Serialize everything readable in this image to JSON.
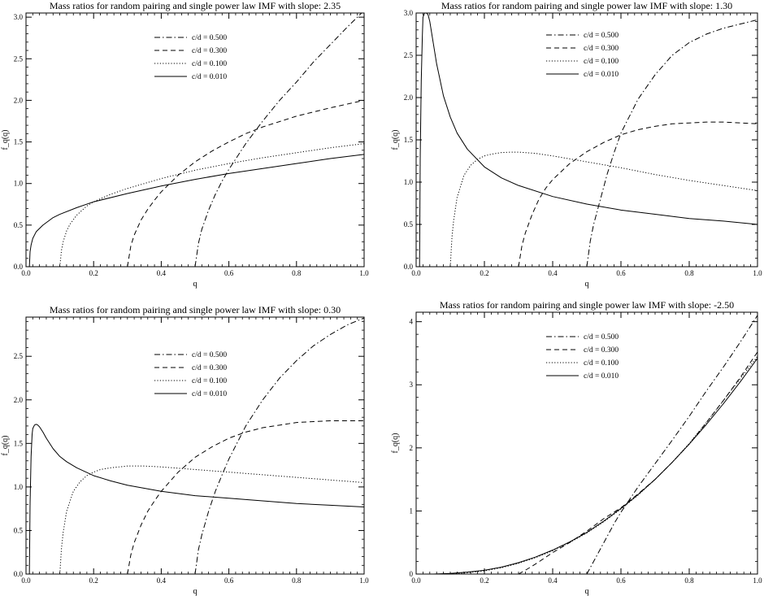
{
  "chart_data": [
    {
      "type": "line",
      "title": "Mass ratios for random pairing and single power law IMF with slope:  2.35",
      "xlabel": "q",
      "ylabel": "f_q(q)",
      "xlim": [
        0,
        1
      ],
      "ylim": [
        0,
        3.05
      ],
      "xticks": [
        "0.0",
        "0.2",
        "0.4",
        "0.6",
        "0.8",
        "1.0"
      ],
      "yticks": [
        "0.0",
        "0.5",
        "1.0",
        "1.5",
        "2.0",
        "2.5",
        "3.0"
      ],
      "legend_position": "top-center",
      "series": [
        {
          "name": "c/d = 0.500",
          "dash": "dashdot",
          "x": [
            0.5,
            0.51,
            0.52,
            0.54,
            0.56,
            0.58,
            0.6,
            0.65,
            0.7,
            0.75,
            0.8,
            0.85,
            0.9,
            0.95,
            1.0
          ],
          "y": [
            0.0,
            0.28,
            0.45,
            0.68,
            0.87,
            1.03,
            1.17,
            1.48,
            1.75,
            2.0,
            2.22,
            2.46,
            2.67,
            2.88,
            3.08
          ]
        },
        {
          "name": "c/d = 0.300",
          "dash": "dashed",
          "x": [
            0.3,
            0.31,
            0.32,
            0.34,
            0.36,
            0.38,
            0.4,
            0.45,
            0.5,
            0.55,
            0.6,
            0.65,
            0.7,
            0.8,
            0.9,
            1.0
          ],
          "y": [
            0.0,
            0.25,
            0.38,
            0.56,
            0.69,
            0.8,
            0.9,
            1.1,
            1.26,
            1.39,
            1.5,
            1.6,
            1.68,
            1.81,
            1.91,
            2.0
          ]
        },
        {
          "name": "c/d = 0.100",
          "dash": "dotted",
          "x": [
            0.1,
            0.105,
            0.11,
            0.12,
            0.13,
            0.15,
            0.18,
            0.2,
            0.25,
            0.3,
            0.4,
            0.5,
            0.6,
            0.7,
            0.8,
            0.9,
            1.0
          ],
          "y": [
            0.0,
            0.2,
            0.3,
            0.43,
            0.51,
            0.62,
            0.73,
            0.78,
            0.87,
            0.94,
            1.06,
            1.16,
            1.24,
            1.31,
            1.37,
            1.43,
            1.48
          ]
        },
        {
          "name": "c/d = 0.010",
          "dash": "solid",
          "x": [
            0.01,
            0.012,
            0.015,
            0.02,
            0.03,
            0.05,
            0.08,
            0.1,
            0.15,
            0.2,
            0.3,
            0.4,
            0.5,
            0.6,
            0.7,
            0.8,
            0.9,
            1.0
          ],
          "y": [
            0.0,
            0.18,
            0.26,
            0.34,
            0.42,
            0.5,
            0.59,
            0.63,
            0.71,
            0.78,
            0.88,
            0.97,
            1.05,
            1.12,
            1.18,
            1.24,
            1.3,
            1.35
          ]
        }
      ]
    },
    {
      "type": "line",
      "title": "Mass ratios for random pairing and single power law IMF with slope:  1.30",
      "xlabel": "q",
      "ylabel": "f_q(q)",
      "xlim": [
        0,
        1
      ],
      "ylim": [
        0,
        3.0
      ],
      "xticks": [
        "0.0",
        "0.2",
        "0.4",
        "0.6",
        "0.8",
        "1.0"
      ],
      "yticks": [
        "0.0",
        "0.5",
        "1.0",
        "1.5",
        "2.0",
        "2.5",
        "3.0"
      ],
      "legend_position": "top-right",
      "series": [
        {
          "name": "c/d = 0.500",
          "dash": "dashdot",
          "x": [
            0.5,
            0.51,
            0.52,
            0.54,
            0.56,
            0.58,
            0.6,
            0.65,
            0.7,
            0.75,
            0.8,
            0.85,
            0.9,
            0.95,
            1.0
          ],
          "y": [
            0.0,
            0.3,
            0.5,
            0.8,
            1.1,
            1.35,
            1.58,
            1.98,
            2.27,
            2.5,
            2.65,
            2.75,
            2.82,
            2.87,
            2.92
          ]
        },
        {
          "name": "c/d = 0.300",
          "dash": "dashed",
          "x": [
            0.3,
            0.31,
            0.32,
            0.34,
            0.36,
            0.38,
            0.4,
            0.45,
            0.5,
            0.55,
            0.6,
            0.65,
            0.7,
            0.75,
            0.8,
            0.85,
            0.9,
            0.95,
            1.0
          ],
          "y": [
            0.0,
            0.25,
            0.4,
            0.62,
            0.8,
            0.93,
            1.03,
            1.22,
            1.36,
            1.47,
            1.56,
            1.62,
            1.66,
            1.69,
            1.7,
            1.71,
            1.71,
            1.7,
            1.69
          ]
        },
        {
          "name": "c/d = 0.100",
          "dash": "dotted",
          "x": [
            0.1,
            0.105,
            0.11,
            0.12,
            0.14,
            0.16,
            0.18,
            0.2,
            0.22,
            0.25,
            0.28,
            0.3,
            0.35,
            0.4,
            0.5,
            0.6,
            0.7,
            0.8,
            0.9,
            1.0
          ],
          "y": [
            0.0,
            0.35,
            0.55,
            0.82,
            1.08,
            1.2,
            1.27,
            1.31,
            1.33,
            1.35,
            1.355,
            1.355,
            1.34,
            1.31,
            1.24,
            1.17,
            1.09,
            1.02,
            0.96,
            0.9
          ]
        },
        {
          "name": "c/d = 0.010",
          "dash": "solid",
          "x": [
            0.01,
            0.012,
            0.015,
            0.018,
            0.02,
            0.025,
            0.03,
            0.035,
            0.04,
            0.05,
            0.06,
            0.08,
            0.1,
            0.12,
            0.15,
            0.2,
            0.25,
            0.3,
            0.4,
            0.5,
            0.6,
            0.7,
            0.8,
            0.9,
            1.0
          ],
          "y": [
            0.0,
            1.3,
            2.2,
            2.7,
            2.95,
            3.0,
            3.0,
            2.98,
            2.9,
            2.65,
            2.4,
            2.02,
            1.77,
            1.58,
            1.39,
            1.18,
            1.05,
            0.96,
            0.83,
            0.74,
            0.67,
            0.62,
            0.57,
            0.54,
            0.5
          ]
        }
      ]
    },
    {
      "type": "line",
      "title": "Mass ratios for random pairing and single power law IMF with slope:  0.30",
      "xlabel": "q",
      "ylabel": "f_q(q)",
      "xlim": [
        0,
        1
      ],
      "ylim": [
        0,
        2.95
      ],
      "xticks": [
        "0.0",
        "0.2",
        "0.4",
        "0.6",
        "0.8",
        "1.0"
      ],
      "yticks": [
        "0.0",
        "0.5",
        "1.0",
        "1.5",
        "2.0",
        "2.5"
      ],
      "legend_position": "top-center",
      "series": [
        {
          "name": "c/d = 0.500",
          "dash": "dashdot",
          "x": [
            0.5,
            0.51,
            0.52,
            0.54,
            0.56,
            0.58,
            0.6,
            0.65,
            0.7,
            0.75,
            0.8,
            0.85,
            0.9,
            0.95,
            1.0
          ],
          "y": [
            0.0,
            0.28,
            0.45,
            0.72,
            0.95,
            1.14,
            1.32,
            1.7,
            2.0,
            2.25,
            2.45,
            2.62,
            2.75,
            2.86,
            2.94
          ]
        },
        {
          "name": "c/d = 0.300",
          "dash": "dashed",
          "x": [
            0.3,
            0.31,
            0.32,
            0.34,
            0.36,
            0.38,
            0.4,
            0.45,
            0.5,
            0.55,
            0.6,
            0.65,
            0.7,
            0.75,
            0.8,
            0.85,
            0.9,
            0.95,
            1.0
          ],
          "y": [
            0.0,
            0.22,
            0.36,
            0.56,
            0.72,
            0.84,
            0.95,
            1.17,
            1.34,
            1.46,
            1.56,
            1.63,
            1.68,
            1.71,
            1.74,
            1.75,
            1.76,
            1.76,
            1.76
          ]
        },
        {
          "name": "c/d = 0.100",
          "dash": "dotted",
          "x": [
            0.1,
            0.105,
            0.11,
            0.12,
            0.14,
            0.16,
            0.18,
            0.2,
            0.22,
            0.25,
            0.3,
            0.35,
            0.4,
            0.5,
            0.6,
            0.7,
            0.8,
            0.9,
            1.0
          ],
          "y": [
            0.0,
            0.3,
            0.48,
            0.72,
            0.95,
            1.06,
            1.13,
            1.17,
            1.2,
            1.22,
            1.24,
            1.24,
            1.23,
            1.2,
            1.17,
            1.14,
            1.11,
            1.08,
            1.05
          ]
        },
        {
          "name": "c/d = 0.010",
          "dash": "solid",
          "x": [
            0.01,
            0.012,
            0.015,
            0.018,
            0.02,
            0.025,
            0.03,
            0.035,
            0.04,
            0.05,
            0.06,
            0.08,
            0.1,
            0.12,
            0.15,
            0.2,
            0.25,
            0.3,
            0.4,
            0.5,
            0.6,
            0.7,
            0.8,
            0.9,
            1.0
          ],
          "y": [
            0.0,
            0.8,
            1.35,
            1.6,
            1.67,
            1.71,
            1.72,
            1.71,
            1.69,
            1.63,
            1.56,
            1.44,
            1.35,
            1.29,
            1.22,
            1.13,
            1.07,
            1.02,
            0.95,
            0.9,
            0.87,
            0.84,
            0.81,
            0.79,
            0.77
          ]
        }
      ]
    },
    {
      "type": "line",
      "title": "Mass ratios for random pairing and single power law IMF with slope: -2.50",
      "xlabel": "q",
      "ylabel": "f_q(q)",
      "xlim": [
        0,
        1
      ],
      "ylim": [
        0,
        4.15
      ],
      "xticks": [
        "0.0",
        "0.2",
        "0.4",
        "0.6",
        "0.8",
        "1.0"
      ],
      "yticks": [
        "0",
        "1",
        "2",
        "3",
        "4"
      ],
      "legend_position": "top-center",
      "series": [
        {
          "name": "c/d = 0.500",
          "dash": "dashdot",
          "x": [
            0.5,
            0.52,
            0.55,
            0.58,
            0.6,
            0.65,
            0.7,
            0.75,
            0.8,
            0.85,
            0.9,
            0.95,
            1.0
          ],
          "y": [
            0.0,
            0.2,
            0.5,
            0.8,
            0.98,
            1.38,
            1.75,
            2.12,
            2.5,
            2.9,
            3.28,
            3.68,
            4.1
          ]
        },
        {
          "name": "c/d = 0.300",
          "dash": "dashed",
          "x": [
            0.3,
            0.32,
            0.35,
            0.4,
            0.45,
            0.5,
            0.55,
            0.6,
            0.65,
            0.7,
            0.75,
            0.8,
            0.85,
            0.9,
            0.95,
            1.0
          ],
          "y": [
            0.0,
            0.06,
            0.16,
            0.34,
            0.5,
            0.68,
            0.88,
            1.05,
            1.27,
            1.5,
            1.77,
            2.06,
            2.4,
            2.75,
            3.12,
            3.52
          ]
        },
        {
          "name": "c/d = 0.100",
          "dash": "dotted",
          "x": [
            0.1,
            0.15,
            0.2,
            0.25,
            0.3,
            0.35,
            0.4,
            0.45,
            0.5,
            0.55,
            0.6,
            0.65,
            0.7,
            0.75,
            0.8,
            0.85,
            0.9,
            0.95,
            1.0
          ],
          "y": [
            0.0,
            0.02,
            0.05,
            0.1,
            0.17,
            0.26,
            0.37,
            0.5,
            0.65,
            0.83,
            1.03,
            1.25,
            1.5,
            1.77,
            2.07,
            2.4,
            2.75,
            3.1,
            3.45
          ]
        },
        {
          "name": "c/d = 0.010",
          "dash": "solid",
          "x": [
            0.05,
            0.1,
            0.15,
            0.2,
            0.25,
            0.3,
            0.35,
            0.4,
            0.45,
            0.5,
            0.55,
            0.6,
            0.65,
            0.7,
            0.75,
            0.8,
            0.85,
            0.9,
            0.95,
            1.0
          ],
          "y": [
            0.0,
            0.01,
            0.03,
            0.06,
            0.11,
            0.18,
            0.27,
            0.38,
            0.51,
            0.66,
            0.84,
            1.04,
            1.26,
            1.5,
            1.77,
            2.06,
            2.37,
            2.7,
            3.05,
            3.42
          ]
        }
      ]
    }
  ]
}
